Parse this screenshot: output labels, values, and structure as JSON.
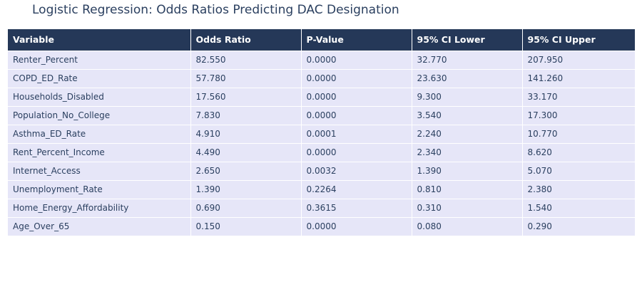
{
  "chart_data": {
    "type": "table",
    "title": "Logistic Regression: Odds Ratios Predicting DAC Designation",
    "columns": [
      "Variable",
      "Odds Ratio",
      "P-Value",
      "95% CI Lower",
      "95% CI Upper"
    ],
    "rows": [
      [
        "Renter_Percent",
        "82.550",
        "0.0000",
        "32.770",
        "207.950"
      ],
      [
        "COPD_ED_Rate",
        "57.780",
        "0.0000",
        "23.630",
        "141.260"
      ],
      [
        "Households_Disabled",
        "17.560",
        "0.0000",
        "9.300",
        "33.170"
      ],
      [
        "Population_No_College",
        "7.830",
        "0.0000",
        "3.540",
        "17.300"
      ],
      [
        "Asthma_ED_Rate",
        "4.910",
        "0.0001",
        "2.240",
        "10.770"
      ],
      [
        "Rent_Percent_Income",
        "4.490",
        "0.0000",
        "2.340",
        "8.620"
      ],
      [
        "Internet_Access",
        "2.650",
        "0.0032",
        "1.390",
        "5.070"
      ],
      [
        "Unemployment_Rate",
        "1.390",
        "0.2264",
        "0.810",
        "2.380"
      ],
      [
        "Home_Energy_Affordability",
        "0.690",
        "0.3615",
        "0.310",
        "1.540"
      ],
      [
        "Age_Over_65",
        "0.150",
        "0.0000",
        "0.080",
        "0.290"
      ]
    ]
  },
  "colors": {
    "header_fill": "#253858",
    "header_text": "#ffffff",
    "cell_fill": "#e6e6f8",
    "cell_text": "#2a3f5f",
    "title_text": "#2a3f5f"
  }
}
